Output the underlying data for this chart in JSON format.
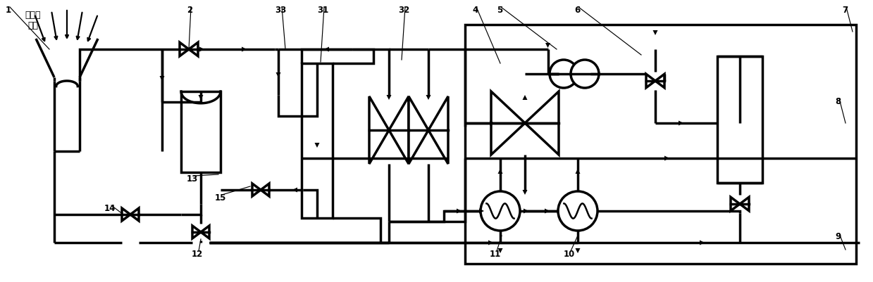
{
  "lw": 2.5,
  "clw": 2.5,
  "fig_width": 12.39,
  "fig_height": 4.01,
  "label_fontsize": 8.5,
  "chinese_text": "聚焦太\n阳光"
}
